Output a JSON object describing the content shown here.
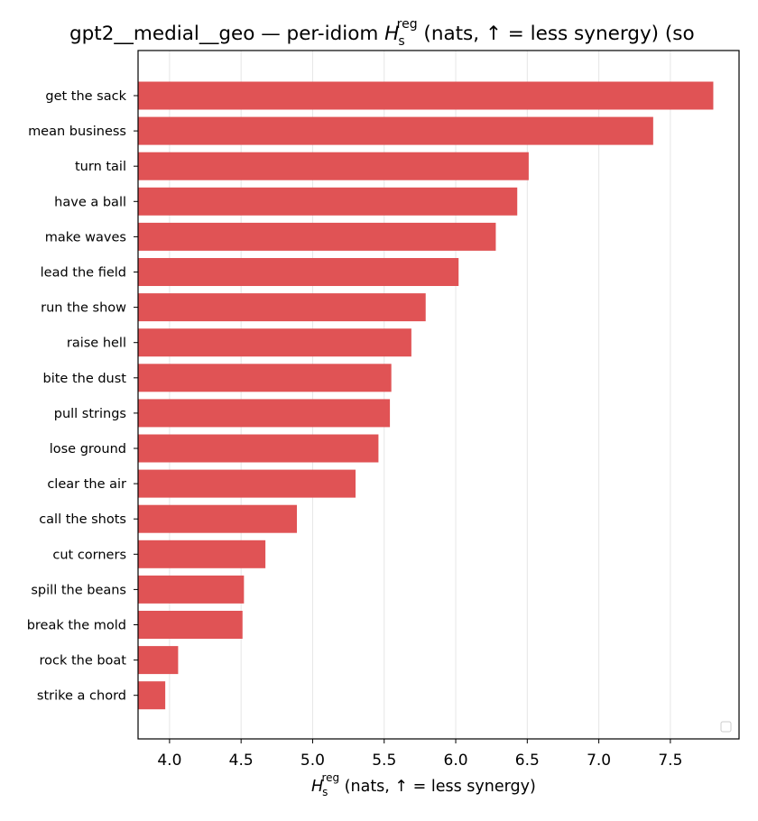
{
  "chart_data": {
    "type": "bar",
    "orientation": "horizontal",
    "title_main": "gpt2__medial__geo — per-idiom ",
    "title_rest": " (nats, ↑ = less synergy) (so",
    "xlabel_rest": " (nats, ↑ = less synergy)",
    "symbol": {
      "base": "H",
      "sub": "s",
      "sup": "reg"
    },
    "categories": [
      "get the sack",
      "mean business",
      "turn tail",
      "have a ball",
      "make waves",
      "lead the field",
      "run the show",
      "raise hell",
      "bite the dust",
      "pull strings",
      "lose ground",
      "clear the air",
      "call the shots",
      "cut corners",
      "spill the beans",
      "break the mold",
      "rock the boat",
      "strike a chord"
    ],
    "values": [
      7.8,
      7.38,
      6.51,
      6.43,
      6.28,
      6.02,
      5.79,
      5.69,
      5.55,
      5.54,
      5.46,
      5.3,
      4.89,
      4.67,
      4.52,
      4.51,
      4.06,
      3.97
    ],
    "xlim": [
      3.78,
      7.98
    ],
    "xticks": [
      "4.0",
      "4.5",
      "5.0",
      "5.5",
      "6.0",
      "6.5",
      "7.0",
      "7.5"
    ],
    "bar_color": "#e05355",
    "grid": "vertical",
    "legend": "empty box, lower-right"
  }
}
